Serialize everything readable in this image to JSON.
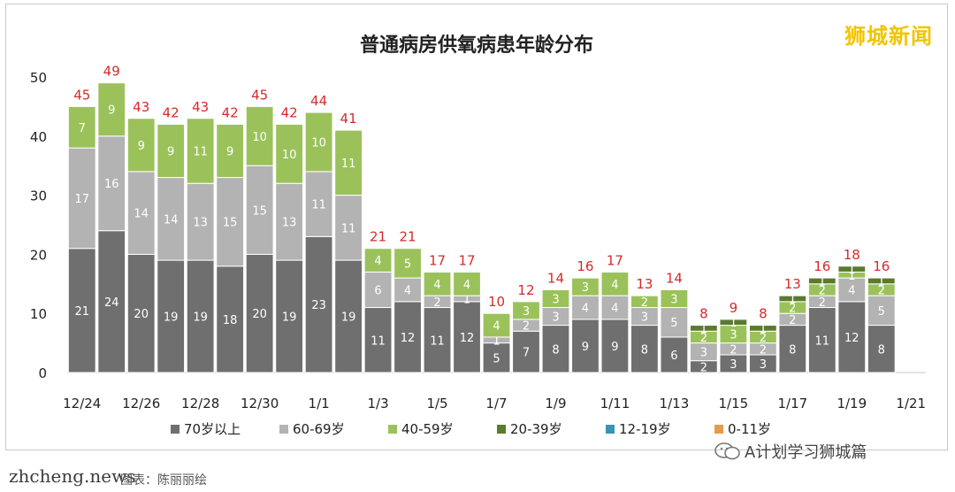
{
  "watermark": "狮城新闻",
  "credit": "zhcheng.news",
  "credit_note": "图表：陈丽丽绘",
  "account_name": "A计划学习狮城篇",
  "account_icon": "wechat-icon",
  "chart_data": {
    "type": "bar",
    "stacked": true,
    "title": "普通病房供氧病患年龄分布",
    "xlabel": "",
    "ylabel": "",
    "ylim": [
      0,
      55
    ],
    "yticks": [
      0,
      10,
      20,
      30,
      40,
      50
    ],
    "grid": false,
    "legend_position": "bottom",
    "categories": [
      "12/24",
      "12/25",
      "12/26",
      "12/27",
      "12/28",
      "12/29",
      "12/30",
      "12/31",
      "1/1",
      "1/2",
      "1/3",
      "1/4",
      "1/5",
      "1/6",
      "1/7",
      "1/8",
      "1/9",
      "1/10",
      "1/11",
      "1/12",
      "1/13",
      "1/14",
      "1/15",
      "1/16",
      "1/17",
      "1/18",
      "1/19",
      "1/20",
      "1/21"
    ],
    "xtick_labels": [
      "12/24",
      "12/26",
      "12/28",
      "12/30",
      "1/1",
      "1/3",
      "1/5",
      "1/7",
      "1/9",
      "1/11",
      "1/13",
      "1/15",
      "1/17",
      "1/19",
      "1/21"
    ],
    "totals": [
      45,
      49,
      43,
      42,
      43,
      42,
      45,
      42,
      44,
      41,
      21,
      21,
      17,
      17,
      10,
      12,
      14,
      16,
      17,
      13,
      14,
      8,
      9,
      8,
      13,
      16,
      18,
      16,
      null
    ],
    "series": [
      {
        "name": "70岁以上",
        "color": "#6f6f6f",
        "values": [
          21,
          24,
          20,
          19,
          19,
          18,
          20,
          19,
          23,
          19,
          11,
          12,
          11,
          12,
          5,
          7,
          8,
          9,
          9,
          8,
          6,
          2,
          3,
          3,
          8,
          11,
          12,
          8,
          null
        ]
      },
      {
        "name": "60-69岁",
        "color": "#b3b3b3",
        "values": [
          17,
          16,
          14,
          14,
          13,
          15,
          15,
          13,
          11,
          11,
          6,
          4,
          2,
          1,
          1,
          2,
          3,
          4,
          4,
          3,
          5,
          3,
          2,
          2,
          2,
          2,
          4,
          5,
          null
        ]
      },
      {
        "name": "40-59岁",
        "color": "#9bc25a",
        "values": [
          7,
          9,
          9,
          9,
          11,
          9,
          10,
          10,
          10,
          11,
          4,
          5,
          4,
          4,
          4,
          3,
          3,
          3,
          4,
          2,
          3,
          2,
          3,
          2,
          2,
          2,
          1,
          2,
          null
        ]
      },
      {
        "name": "20-39岁",
        "color": "#5b7a2e",
        "values": [
          0,
          0,
          0,
          0,
          0,
          0,
          0,
          0,
          0,
          0,
          0,
          0,
          0,
          0,
          0,
          0,
          0,
          0,
          0,
          0,
          0,
          1,
          1,
          1,
          1,
          1,
          1,
          1,
          null
        ]
      },
      {
        "name": "12-19岁",
        "color": "#3a95b2",
        "values": [
          0,
          0,
          0,
          0,
          0,
          0,
          0,
          0,
          0,
          0,
          0,
          0,
          0,
          0,
          0,
          0,
          0,
          0,
          0,
          0,
          0,
          0,
          0,
          0,
          0,
          0,
          0,
          0,
          null
        ]
      },
      {
        "name": "0-11岁",
        "color": "#e79a4a",
        "values": [
          0,
          0,
          0,
          0,
          0,
          0,
          0,
          0,
          0,
          0,
          0,
          0,
          0,
          0,
          0,
          0,
          0,
          0,
          0,
          0,
          0,
          0,
          0,
          0,
          0,
          0,
          0,
          0,
          null
        ]
      }
    ],
    "colors": {
      "total_label": "#d62a2a",
      "segment_label": "#ffffff",
      "axis": "#c8c8c8",
      "text": "#222222"
    }
  }
}
